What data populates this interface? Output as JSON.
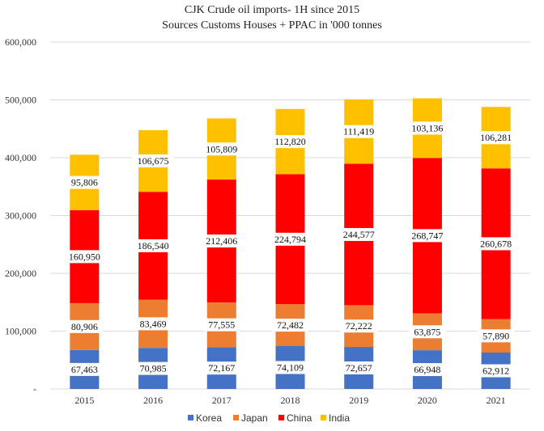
{
  "chart_data": {
    "type": "bar",
    "stacked": true,
    "title": "CJK Crude oil imports- 1H since 2015",
    "subtitle": "Sources Customs Houses + PPAC in '000 tonnes",
    "categories": [
      "2015",
      "2016",
      "2017",
      "2018",
      "2019",
      "2020",
      "2021"
    ],
    "series": [
      {
        "name": "Korea",
        "color": "#4472c4",
        "values": [
          67463,
          70985,
          72167,
          74109,
          72657,
          66948,
          62912
        ]
      },
      {
        "name": "Japan",
        "color": "#ed7d31",
        "values": [
          80906,
          83469,
          77555,
          72482,
          72222,
          63875,
          57890
        ]
      },
      {
        "name": "China",
        "color": "#ff0000",
        "values": [
          160950,
          186540,
          212406,
          224794,
          244577,
          268747,
          260678
        ]
      },
      {
        "name": "India",
        "color": "#ffc000",
        "values": [
          95806,
          106675,
          105809,
          112820,
          111419,
          103136,
          106281
        ]
      }
    ],
    "data_labels": {
      "Korea": [
        "67,463",
        "70,985",
        "72,167",
        "74,109",
        "72,657",
        "66,948",
        "62,912"
      ],
      "Japan": [
        "80,906",
        "83,469",
        "77,555",
        "72,482",
        "72,222",
        "63,875",
        "57,890"
      ],
      "China": [
        "160,950",
        "186,540",
        "212,406",
        "224,794",
        "244,577",
        "268,747",
        "260,678"
      ],
      "India": [
        "95,806",
        "106,675",
        "105,809",
        "112,820",
        "111,419",
        "103,136",
        "106,281"
      ]
    },
    "y_tick_labels": [
      "-",
      "100,000",
      "200,000",
      "300,000",
      "400,000",
      "500,000",
      "600,000"
    ],
    "ylim": [
      0,
      600000
    ],
    "y_ticks": [
      0,
      100000,
      200000,
      300000,
      400000,
      500000,
      600000
    ],
    "grid": true,
    "legend_position": "bottom",
    "xlabel": "",
    "ylabel": ""
  }
}
